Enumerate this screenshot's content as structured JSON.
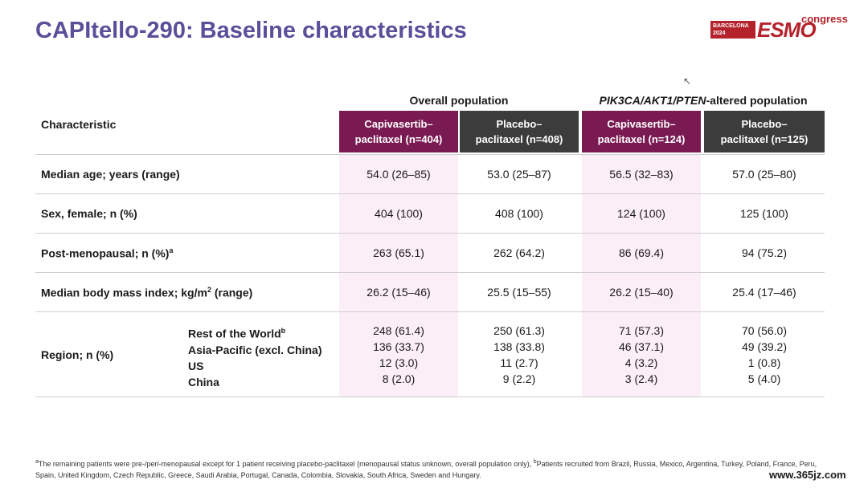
{
  "title": "CAPItello-290: Baseline characteristics",
  "logo": {
    "city": "BARCELONA",
    "year": "2024",
    "brand": "ESMO",
    "suffix": "congress"
  },
  "table": {
    "group_overall": "Overall population",
    "group_altered_genes": "PIK3CA/AKT1/PTEN",
    "group_altered_suffix": "-altered population",
    "characteristic_header": "Characteristic",
    "columns": [
      {
        "line1": "Capivasertib–",
        "line2": "paclitaxel (n=404)"
      },
      {
        "line1": "Placebo–",
        "line2": "paclitaxel (n=408)"
      },
      {
        "line1": "Capivasertib–",
        "line2": "paclitaxel (n=124)"
      },
      {
        "line1": "Placebo–",
        "line2": "paclitaxel (n=125)"
      }
    ],
    "rows": [
      {
        "label": "Median age; years (range)",
        "values": [
          "54.0 (26–85)",
          "53.0 (25–87)",
          "56.5 (32–83)",
          "57.0 (25–80)"
        ]
      },
      {
        "label": "Sex, female; n (%)",
        "values": [
          "404 (100)",
          "408 (100)",
          "124 (100)",
          "125 (100)"
        ]
      },
      {
        "label": "Post-menopausal; n (%)",
        "label_sup": "a",
        "values": [
          "263 (65.1)",
          "262 (64.2)",
          "86 (69.4)",
          "94 (75.2)"
        ]
      },
      {
        "label": "Median body mass index; kg/m",
        "label_sup": "2",
        "label_suffix": " (range)",
        "values": [
          "26.2 (15–46)",
          "25.5 (15–55)",
          "26.2 (15–40)",
          "25.4 (17–46)"
        ]
      }
    ],
    "region": {
      "label": "Region; n (%)",
      "subcategories": [
        {
          "name": "Rest of the World",
          "sup": "b",
          "values": [
            "248 (61.4)",
            "250 (61.3)",
            "71 (57.3)",
            "70 (56.0)"
          ]
        },
        {
          "name": "Asia-Pacific (excl. China)",
          "values": [
            "136 (33.7)",
            "138 (33.8)",
            "46 (37.1)",
            "49 (39.2)"
          ]
        },
        {
          "name": "US",
          "values": [
            "12 (3.0)",
            "11 (2.7)",
            "4 (3.2)",
            "1 (0.8)"
          ]
        },
        {
          "name": "China",
          "values": [
            "8 (2.0)",
            "9 (2.2)",
            "3 (2.4)",
            "5 (4.0)"
          ]
        }
      ]
    }
  },
  "footnote": {
    "a_mark": "a",
    "a_text": "The remaining patients were pre-/peri-menopausal except for 1 patient receiving placebo-paclitaxel (menopausal status unknown, overall population only), ",
    "b_mark": "b",
    "b_text": "Patients recruited from Brazil, Russia, Mexico, Argentina, Turkey, Poland, France, Peru, Spain, United Kingdom, Czech Republic, Greece, Saudi Arabia, Portugal, Canada, Colombia, Slovakia, South Africa, Sweden and Hungary."
  },
  "watermark": "www.365jz.com",
  "colors": {
    "title": "#5b4f9a",
    "capivasertib": "#7a1a52",
    "placebo": "#3c3c3c",
    "shade": "#fbeef6",
    "brand": "#b4232c"
  }
}
